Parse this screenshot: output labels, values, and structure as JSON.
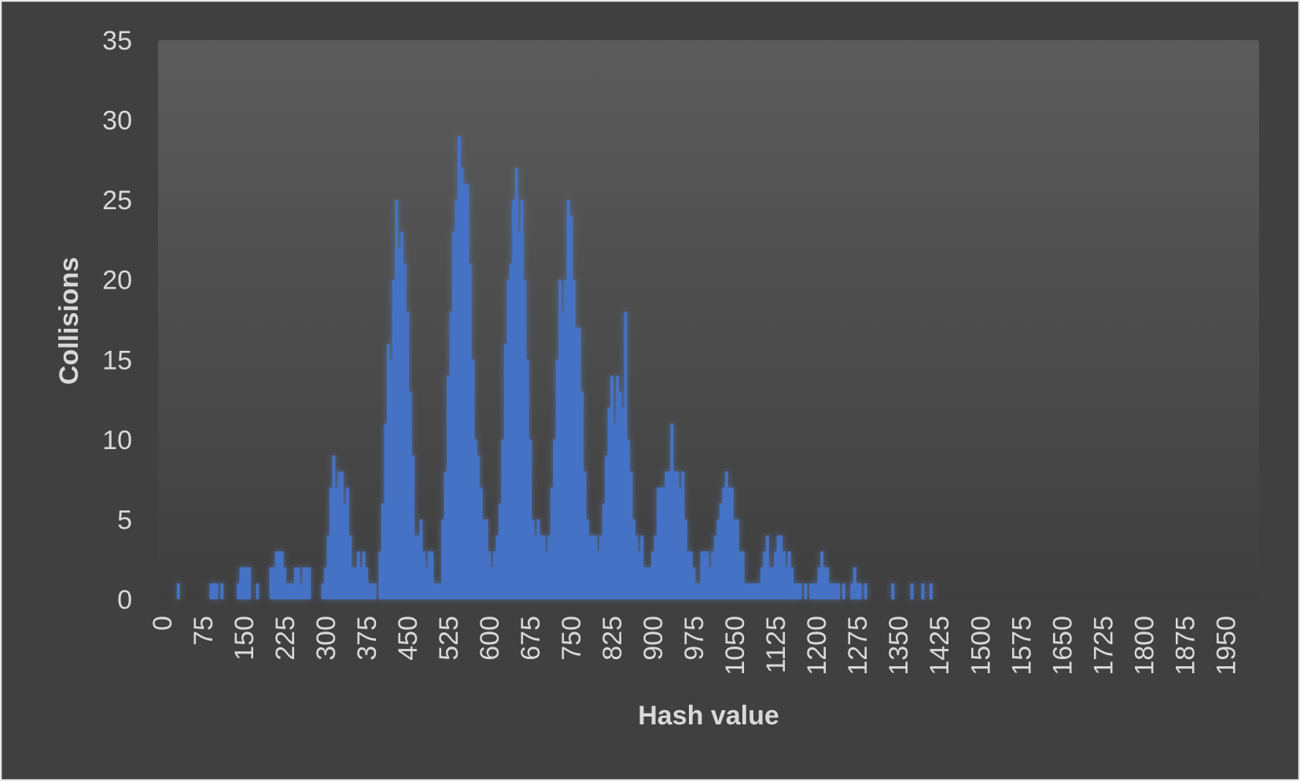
{
  "chart_data": {
    "type": "bar",
    "title": "",
    "xlabel": "Hash value",
    "ylabel": "Collisions",
    "xlim": [
      0,
      2000
    ],
    "ylim": [
      0,
      35
    ],
    "y_ticks": [
      "0",
      "5",
      "10",
      "15",
      "20",
      "25",
      "30",
      "35"
    ],
    "x_ticks": [
      "0",
      "75",
      "150",
      "225",
      "300",
      "375",
      "450",
      "525",
      "600",
      "675",
      "750",
      "825",
      "900",
      "975",
      "1050",
      "1125",
      "1200",
      "1275",
      "1350",
      "1425",
      "1500",
      "1575",
      "1650",
      "1725",
      "1800",
      "1875",
      "1950"
    ],
    "grid": false,
    "legend": "none",
    "bar_color": "#4472c4",
    "approximate": true,
    "points": [
      [
        30,
        1
      ],
      [
        90,
        1
      ],
      [
        95,
        1
      ],
      [
        100,
        1
      ],
      [
        110,
        1
      ],
      [
        140,
        1
      ],
      [
        145,
        2
      ],
      [
        150,
        2
      ],
      [
        155,
        2
      ],
      [
        160,
        2
      ],
      [
        175,
        1
      ],
      [
        200,
        2
      ],
      [
        205,
        2
      ],
      [
        210,
        3
      ],
      [
        215,
        3
      ],
      [
        220,
        3
      ],
      [
        225,
        2
      ],
      [
        230,
        1
      ],
      [
        235,
        1
      ],
      [
        240,
        1
      ],
      [
        245,
        2
      ],
      [
        250,
        2
      ],
      [
        255,
        1
      ],
      [
        260,
        2
      ],
      [
        265,
        2
      ],
      [
        270,
        2
      ],
      [
        295,
        1
      ],
      [
        300,
        2
      ],
      [
        305,
        4
      ],
      [
        310,
        7
      ],
      [
        315,
        9
      ],
      [
        320,
        7
      ],
      [
        325,
        8
      ],
      [
        330,
        8
      ],
      [
        335,
        6
      ],
      [
        340,
        7
      ],
      [
        345,
        4
      ],
      [
        350,
        2
      ],
      [
        355,
        2
      ],
      [
        360,
        3
      ],
      [
        365,
        2
      ],
      [
        370,
        3
      ],
      [
        375,
        2
      ],
      [
        380,
        1
      ],
      [
        385,
        1
      ],
      [
        390,
        1
      ],
      [
        400,
        3
      ],
      [
        405,
        6
      ],
      [
        410,
        11
      ],
      [
        415,
        16
      ],
      [
        420,
        15
      ],
      [
        425,
        20
      ],
      [
        430,
        25
      ],
      [
        435,
        22
      ],
      [
        440,
        23
      ],
      [
        445,
        21
      ],
      [
        450,
        18
      ],
      [
        455,
        13
      ],
      [
        460,
        9
      ],
      [
        465,
        4
      ],
      [
        470,
        4
      ],
      [
        475,
        5
      ],
      [
        480,
        3
      ],
      [
        485,
        2
      ],
      [
        490,
        3
      ],
      [
        495,
        3
      ],
      [
        500,
        1
      ],
      [
        505,
        1
      ],
      [
        510,
        1
      ],
      [
        515,
        5
      ],
      [
        520,
        8
      ],
      [
        525,
        14
      ],
      [
        530,
        18
      ],
      [
        535,
        23
      ],
      [
        540,
        25
      ],
      [
        545,
        29
      ],
      [
        550,
        27
      ],
      [
        555,
        26
      ],
      [
        560,
        26
      ],
      [
        565,
        21
      ],
      [
        570,
        15
      ],
      [
        575,
        10
      ],
      [
        580,
        9
      ],
      [
        585,
        7
      ],
      [
        590,
        5
      ],
      [
        595,
        5
      ],
      [
        600,
        3
      ],
      [
        605,
        2
      ],
      [
        610,
        3
      ],
      [
        615,
        4
      ],
      [
        620,
        6
      ],
      [
        625,
        10
      ],
      [
        630,
        16
      ],
      [
        635,
        20
      ],
      [
        640,
        21
      ],
      [
        645,
        25
      ],
      [
        650,
        27
      ],
      [
        655,
        23
      ],
      [
        660,
        25
      ],
      [
        665,
        20
      ],
      [
        670,
        15
      ],
      [
        675,
        10
      ],
      [
        680,
        5
      ],
      [
        685,
        4
      ],
      [
        690,
        5
      ],
      [
        695,
        4
      ],
      [
        700,
        4
      ],
      [
        705,
        3
      ],
      [
        710,
        4
      ],
      [
        715,
        7
      ],
      [
        720,
        10
      ],
      [
        725,
        15
      ],
      [
        730,
        20
      ],
      [
        735,
        18
      ],
      [
        740,
        20
      ],
      [
        745,
        25
      ],
      [
        750,
        24
      ],
      [
        755,
        20
      ],
      [
        760,
        17
      ],
      [
        765,
        17
      ],
      [
        770,
        13
      ],
      [
        775,
        8
      ],
      [
        780,
        5
      ],
      [
        785,
        4
      ],
      [
        790,
        4
      ],
      [
        795,
        4
      ],
      [
        800,
        3
      ],
      [
        805,
        4
      ],
      [
        810,
        6
      ],
      [
        815,
        9
      ],
      [
        820,
        12
      ],
      [
        825,
        14
      ],
      [
        830,
        11
      ],
      [
        835,
        14
      ],
      [
        840,
        13
      ],
      [
        845,
        12
      ],
      [
        850,
        18
      ],
      [
        855,
        10
      ],
      [
        860,
        8
      ],
      [
        865,
        5
      ],
      [
        870,
        4
      ],
      [
        875,
        3
      ],
      [
        880,
        4
      ],
      [
        885,
        2
      ],
      [
        890,
        2
      ],
      [
        895,
        2
      ],
      [
        900,
        3
      ],
      [
        905,
        4
      ],
      [
        910,
        7
      ],
      [
        915,
        7
      ],
      [
        920,
        7
      ],
      [
        925,
        8
      ],
      [
        930,
        8
      ],
      [
        935,
        11
      ],
      [
        940,
        8
      ],
      [
        945,
        8
      ],
      [
        950,
        7
      ],
      [
        955,
        8
      ],
      [
        960,
        5
      ],
      [
        965,
        3
      ],
      [
        970,
        3
      ],
      [
        975,
        2
      ],
      [
        980,
        1
      ],
      [
        985,
        1
      ],
      [
        990,
        3
      ],
      [
        995,
        3
      ],
      [
        1000,
        3
      ],
      [
        1005,
        2
      ],
      [
        1010,
        3
      ],
      [
        1015,
        4
      ],
      [
        1020,
        5
      ],
      [
        1025,
        6
      ],
      [
        1030,
        7
      ],
      [
        1035,
        8
      ],
      [
        1040,
        7
      ],
      [
        1045,
        7
      ],
      [
        1050,
        5
      ],
      [
        1055,
        5
      ],
      [
        1060,
        3
      ],
      [
        1065,
        3
      ],
      [
        1070,
        1
      ],
      [
        1075,
        1
      ],
      [
        1080,
        1
      ],
      [
        1085,
        1
      ],
      [
        1090,
        1
      ],
      [
        1095,
        1
      ],
      [
        1100,
        2
      ],
      [
        1105,
        3
      ],
      [
        1110,
        4
      ],
      [
        1115,
        2
      ],
      [
        1120,
        2
      ],
      [
        1125,
        3
      ],
      [
        1130,
        4
      ],
      [
        1135,
        4
      ],
      [
        1140,
        3
      ],
      [
        1145,
        2
      ],
      [
        1150,
        3
      ],
      [
        1155,
        2
      ],
      [
        1160,
        1
      ],
      [
        1165,
        1
      ],
      [
        1170,
        1
      ],
      [
        1180,
        1
      ],
      [
        1190,
        1
      ],
      [
        1195,
        1
      ],
      [
        1200,
        1
      ],
      [
        1205,
        2
      ],
      [
        1210,
        3
      ],
      [
        1215,
        2
      ],
      [
        1220,
        2
      ],
      [
        1225,
        1
      ],
      [
        1230,
        1
      ],
      [
        1235,
        1
      ],
      [
        1240,
        1
      ],
      [
        1250,
        1
      ],
      [
        1265,
        1
      ],
      [
        1270,
        2
      ],
      [
        1275,
        1
      ],
      [
        1280,
        1
      ],
      [
        1290,
        1
      ],
      [
        1340,
        1
      ],
      [
        1375,
        1
      ],
      [
        1395,
        1
      ],
      [
        1410,
        1
      ]
    ]
  }
}
